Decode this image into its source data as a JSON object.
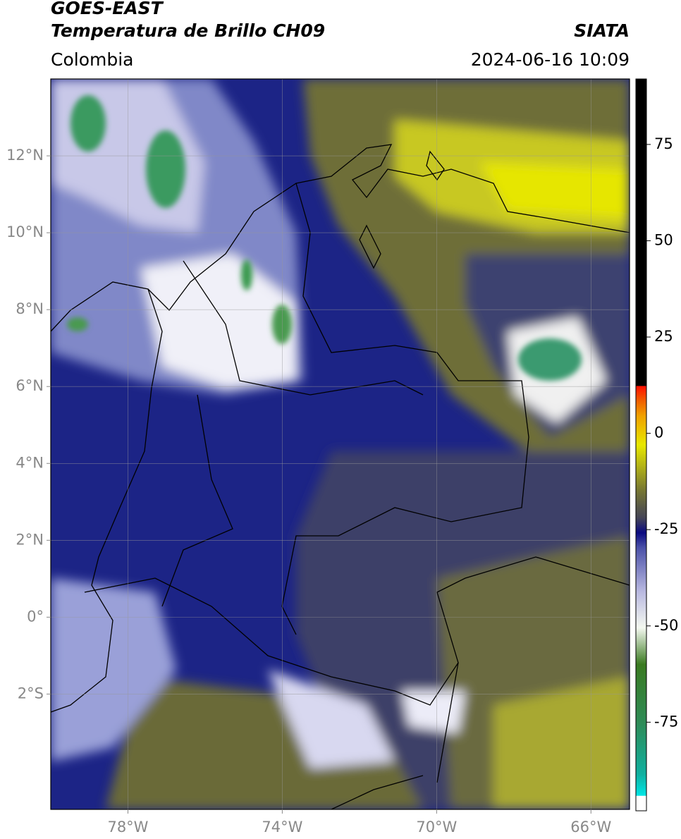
{
  "header": {
    "title": "GOES-EAST",
    "subtitle": "Temperatura de Brillo CH09",
    "source": "SIATA",
    "region": "Colombia",
    "datetime": "2024-06-16 10:09"
  },
  "map": {
    "xlim": [
      -80,
      -65
    ],
    "ylim": [
      -5,
      14
    ],
    "grid": true,
    "xticks": [
      {
        "value": -78,
        "label": "78°W"
      },
      {
        "value": -74,
        "label": "74°W"
      },
      {
        "value": -70,
        "label": "70°W"
      },
      {
        "value": -66,
        "label": "66°W"
      }
    ],
    "yticks": [
      {
        "value": 12,
        "label": "12°N"
      },
      {
        "value": 10,
        "label": "10°N"
      },
      {
        "value": 8,
        "label": "8°N"
      },
      {
        "value": 6,
        "label": "6°N"
      },
      {
        "value": 4,
        "label": "4°N"
      },
      {
        "value": 2,
        "label": "2°N"
      },
      {
        "value": 0,
        "label": "0°"
      },
      {
        "value": -2,
        "label": "2°S"
      }
    ]
  },
  "colorbar": {
    "lim": [
      -98,
      92
    ],
    "ticks": [
      75,
      50,
      25,
      0,
      -25,
      -50,
      -75
    ]
  }
}
